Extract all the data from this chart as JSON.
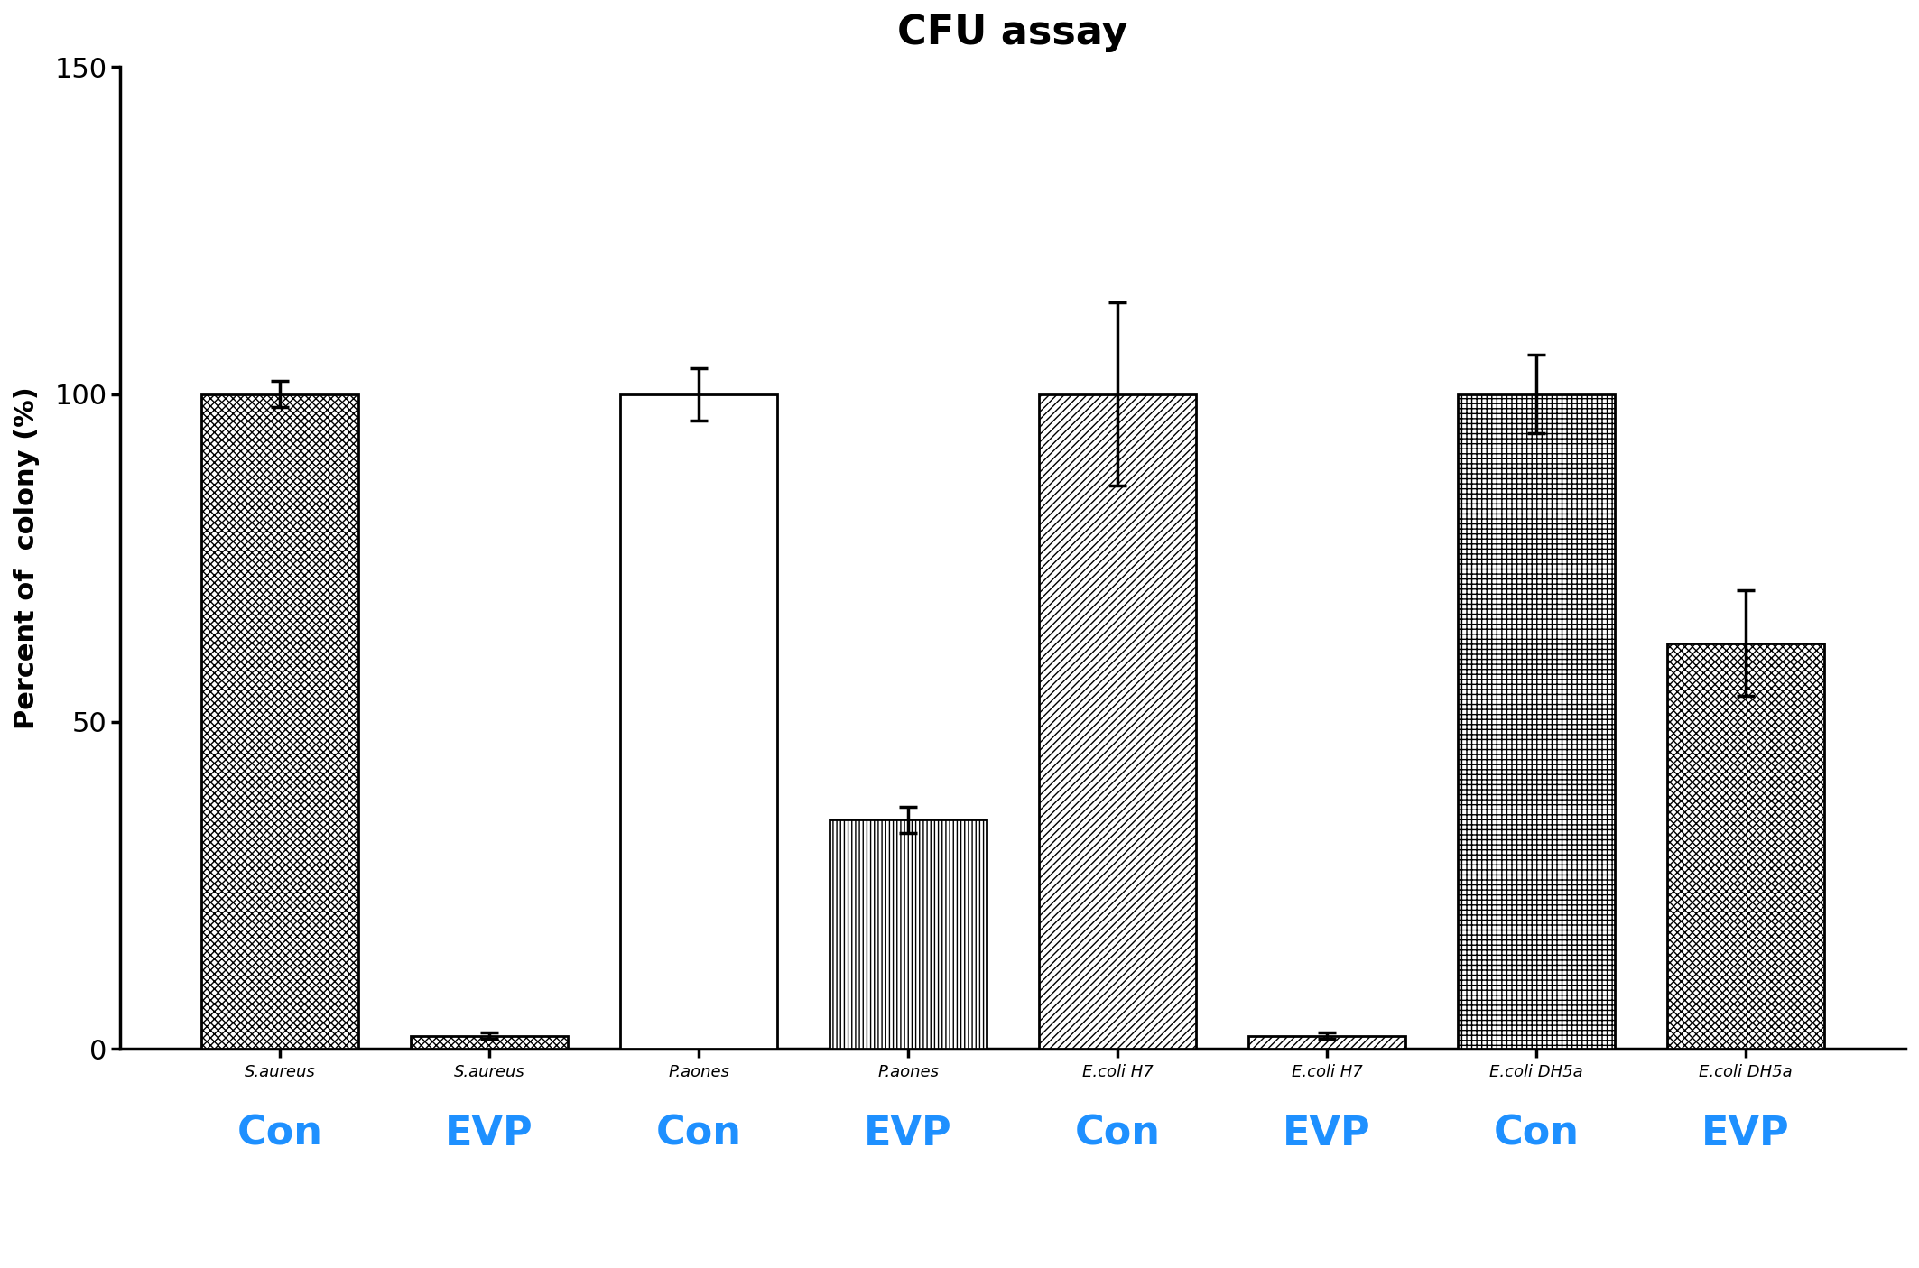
{
  "title": "CFU assay",
  "ylabel": "Percent of  colony (%)",
  "ylim": [
    0,
    150
  ],
  "yticks": [
    0,
    50,
    100,
    150
  ],
  "bars": [
    {
      "label": "S.aureus",
      "value": 100,
      "error": 2,
      "hatch": "xxxx",
      "color": "white",
      "edgecolor": "black"
    },
    {
      "label": "S.aureus",
      "value": 2,
      "error": 0.5,
      "hatch": "xxxx",
      "color": "white",
      "edgecolor": "black"
    },
    {
      "label": "P.aones",
      "value": 100,
      "error": 4,
      "hatch": "====",
      "color": "white",
      "edgecolor": "black"
    },
    {
      "label": "P.aones",
      "value": 35,
      "error": 2,
      "hatch": "||||",
      "color": "white",
      "edgecolor": "black"
    },
    {
      "label": "E.coli H7",
      "value": 100,
      "error": 14,
      "hatch": "////",
      "color": "white",
      "edgecolor": "black"
    },
    {
      "label": "E.coli H7",
      "value": 2,
      "error": 0.5,
      "hatch": "////",
      "color": "white",
      "edgecolor": "black"
    },
    {
      "label": "E.coli DH5a",
      "value": 100,
      "error": 6,
      "hatch": "+++",
      "color": "white",
      "edgecolor": "black"
    },
    {
      "label": "E.coli DH5a",
      "value": 62,
      "error": 8,
      "hatch": "xxxx",
      "color": "white",
      "edgecolor": "black"
    }
  ],
  "group_labels": [
    "Con",
    "EVP",
    "Con",
    "EVP",
    "Con",
    "EVP",
    "Con",
    "EVP"
  ],
  "bar_width": 0.75,
  "title_fontsize": 32,
  "ylabel_fontsize": 22,
  "ytick_fontsize": 22,
  "xtick_fontsize": 13,
  "group_label_fontsize": 32,
  "group_label_color": "#1E90FF",
  "background_color": "white",
  "spine_linewidth": 2.5
}
